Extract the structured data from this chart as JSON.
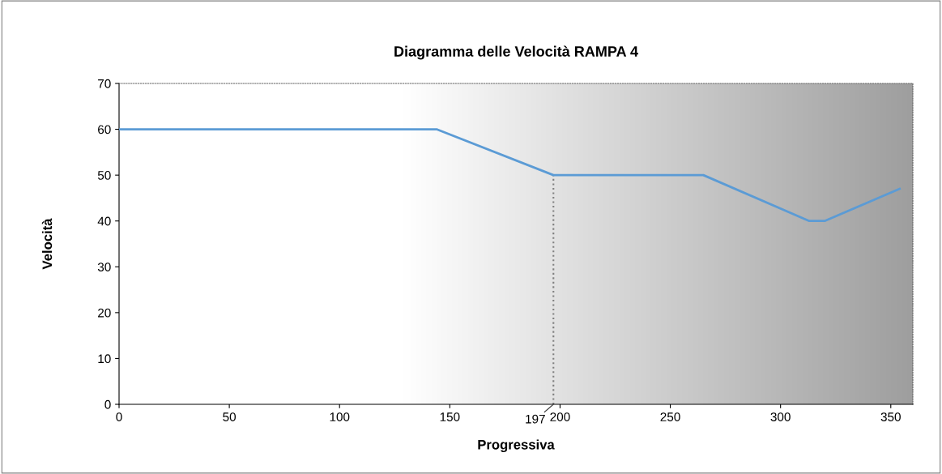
{
  "chart_data": {
    "type": "line",
    "title": "Diagramma delle Velocità RAMPA 4",
    "xlabel": "Progressiva",
    "ylabel": "Velocità",
    "x": [
      0,
      144,
      197,
      265,
      313,
      320,
      354
    ],
    "series": [
      {
        "color": "#5b9bd5",
        "values": [
          60,
          60,
          50,
          50,
          40,
          40,
          47
        ]
      }
    ],
    "xlim": [
      0,
      360
    ],
    "xticks": [
      0,
      50,
      100,
      150,
      200,
      250,
      300,
      350
    ],
    "ylim": [
      0,
      70
    ],
    "yticks": [
      0,
      10,
      20,
      30,
      40,
      50,
      60,
      70
    ],
    "ref_lines": [
      {
        "axis": "x",
        "value": 197,
        "label": "197",
        "color": "#808080",
        "line_style": "dotted"
      }
    ],
    "grid": false,
    "marker": "none",
    "line_style": "solid"
  }
}
